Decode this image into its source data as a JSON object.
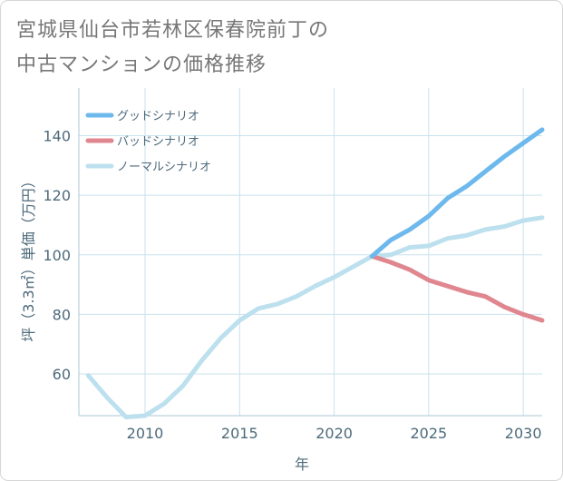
{
  "title_lines": [
    "宮城県仙台市若林区保春院前丁の",
    "中古マンションの価格推移"
  ],
  "colors": {
    "good": "#6db8ec",
    "bad": "#e0868f",
    "normal": "#bde0ee",
    "grid": "#c9e2ee",
    "text": "#4d6a7a"
  },
  "chart_data": {
    "type": "line",
    "title": "宮城県仙台市若林区保春院前丁の中古マンションの価格推移",
    "xlabel": "年",
    "ylabel": "坪（3.3㎡）単価（万円）",
    "xlim": [
      2006.5,
      2031
    ],
    "ylim": [
      46,
      156
    ],
    "xticks": [
      2010,
      2015,
      2020,
      2025,
      2030
    ],
    "yticks": [
      60,
      80,
      100,
      120,
      140
    ],
    "grid": true,
    "legend_position": "top-left",
    "series": [
      {
        "name": "グッドシナリオ",
        "color": "#6db8ec",
        "x": [
          2022,
          2023,
          2024,
          2025,
          2026,
          2027,
          2028,
          2029,
          2030,
          2031
        ],
        "y": [
          99.5,
          105,
          108.5,
          113,
          119,
          123,
          128,
          133,
          137.5,
          142
        ]
      },
      {
        "name": "バッドシナリオ",
        "color": "#e0868f",
        "x": [
          2022,
          2023,
          2024,
          2025,
          2026,
          2027,
          2028,
          2029,
          2030,
          2031
        ],
        "y": [
          99.5,
          97.5,
          95,
          91.5,
          89.5,
          87.5,
          86,
          82.5,
          80,
          78
        ]
      },
      {
        "name": "ノーマルシナリオ",
        "color": "#bde0ee",
        "x": [
          2007,
          2008,
          2009,
          2010,
          2011,
          2012,
          2013,
          2014,
          2015,
          2016,
          2017,
          2018,
          2019,
          2020,
          2021,
          2022,
          2023,
          2024,
          2025,
          2026,
          2027,
          2028,
          2029,
          2030,
          2031
        ],
        "y": [
          59.5,
          52,
          45.5,
          46,
          50,
          56,
          64.5,
          72,
          78,
          82,
          83.5,
          86,
          89.5,
          92.5,
          96,
          99.5,
          100,
          102.5,
          103,
          105.5,
          106.5,
          108.5,
          109.5,
          111.5,
          112.5
        ]
      }
    ]
  }
}
